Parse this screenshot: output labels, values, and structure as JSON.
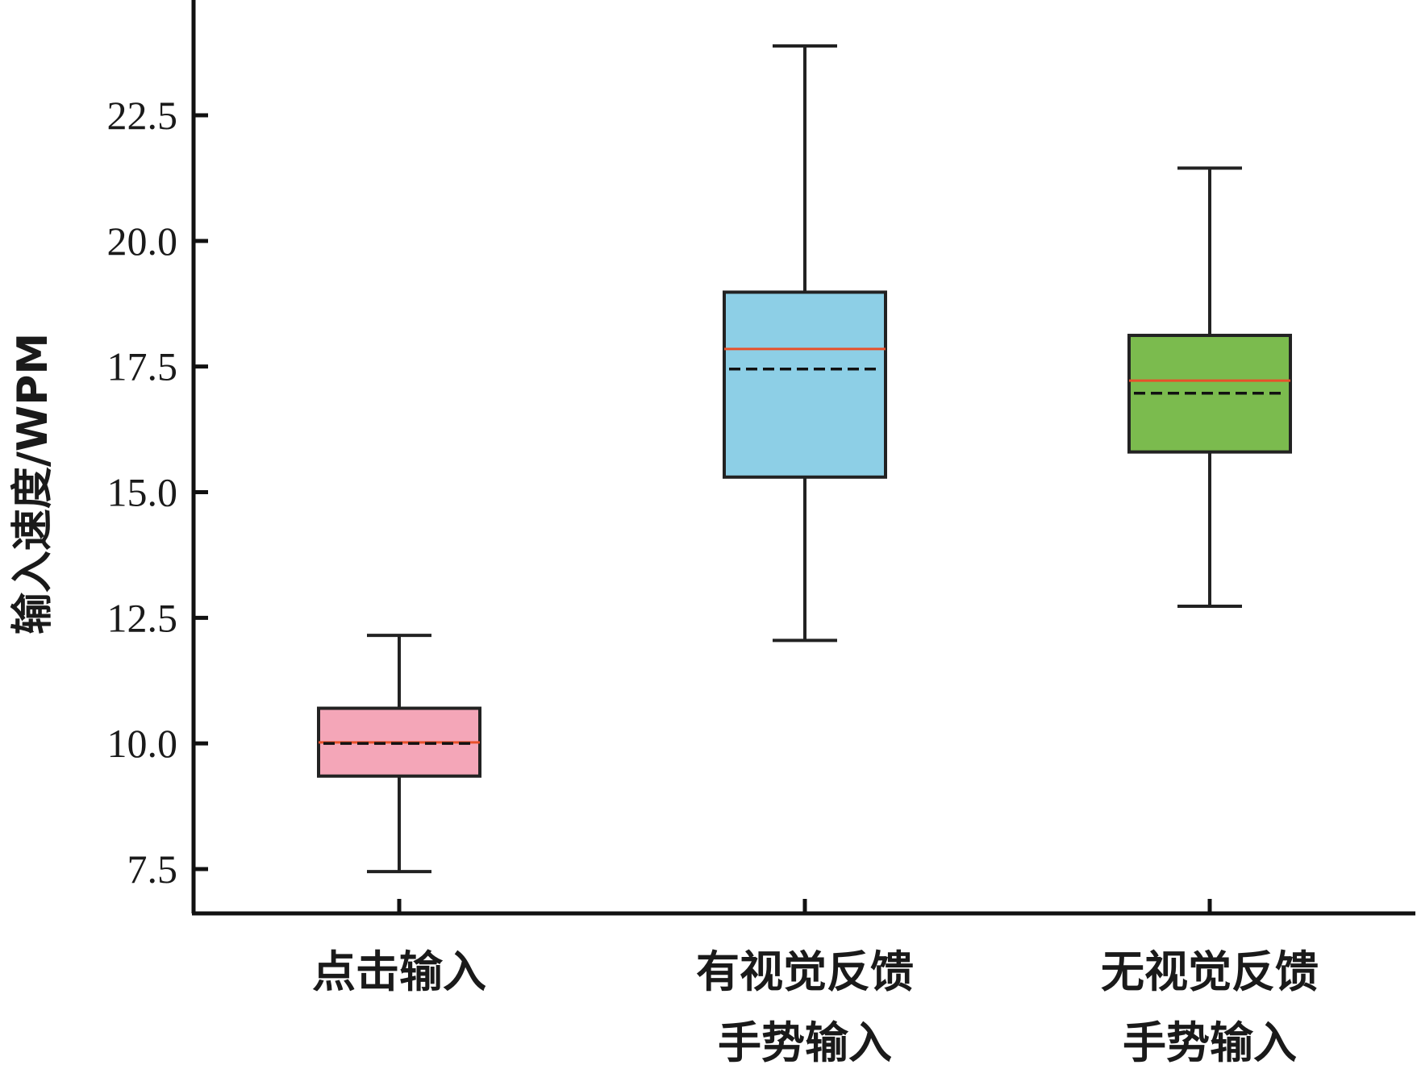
{
  "chart_data": {
    "type": "box",
    "title": "",
    "xlabel": "",
    "ylabel": "输入速度/WPM",
    "ylim": [
      6.6,
      24.6
    ],
    "yticks": [
      7.5,
      10.0,
      12.5,
      15.0,
      17.5,
      20.0,
      22.5
    ],
    "ytick_labels": [
      "7.5",
      "10.0",
      "12.5",
      "15.0",
      "17.5",
      "20.0",
      "22.5"
    ],
    "grid": false,
    "legend": "none",
    "median_color": "#e8502a",
    "mean_style": "dashed",
    "series": [
      {
        "category": [
          "点击输入"
        ],
        "whisker_low": 7.45,
        "q1": 9.35,
        "median": 10.02,
        "mean": 10.0,
        "q3": 10.7,
        "whisker_high": 12.15,
        "color": "#f4a6b8"
      },
      {
        "category": [
          "有视觉反馈",
          "手势输入"
        ],
        "whisker_low": 12.05,
        "q1": 15.3,
        "median": 17.85,
        "mean": 17.45,
        "q3": 18.98,
        "whisker_high": 23.88,
        "color": "#8dcfe6"
      },
      {
        "category": [
          "无视觉反馈",
          "手势输入"
        ],
        "whisker_low": 12.73,
        "q1": 15.8,
        "median": 17.22,
        "mean": 16.97,
        "q3": 18.12,
        "whisker_high": 21.45,
        "color": "#7bbb4e"
      }
    ]
  }
}
